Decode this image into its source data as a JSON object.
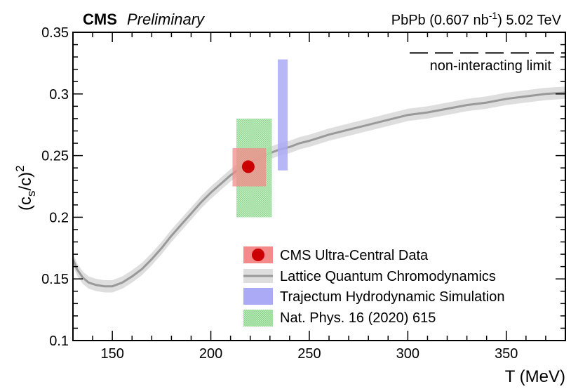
{
  "header": {
    "experiment": "CMS",
    "status": "Preliminary",
    "dataset_prefix": "PbPb (0.607 nb",
    "dataset_exp": "-1",
    "dataset_suffix": ") 5.02 TeV"
  },
  "chart_data": {
    "type": "line",
    "xlabel": "T (MeV)",
    "ylabel_base": "(c",
    "ylabel_sub": "s",
    "ylabel_mid": "/c)",
    "ylabel_sup": "2",
    "xlim": [
      130,
      380
    ],
    "ylim": [
      0.1,
      0.35
    ],
    "x_ticks": [
      150,
      200,
      250,
      300,
      350
    ],
    "x_tick_labels": [
      "150",
      "200",
      "250",
      "300",
      "350"
    ],
    "y_ticks": [
      0.1,
      0.15,
      0.2,
      0.25,
      0.3,
      0.35
    ],
    "y_tick_labels": [
      "0.1",
      "0.15",
      "0.2",
      "0.25",
      "0.3",
      "0.35"
    ],
    "reference_line": {
      "y": 0.3333,
      "label": "non-interacting limit"
    },
    "lattice_qcd": {
      "label": "Lattice Quantum Chromodynamics",
      "color": "#999999",
      "band_color": "#dedede",
      "x": [
        130,
        132,
        135,
        138,
        142,
        146,
        150,
        155,
        160,
        165,
        170,
        175,
        180,
        185,
        190,
        195,
        200,
        205,
        210,
        215,
        220,
        225,
        230,
        235,
        240,
        245,
        250,
        260,
        270,
        280,
        290,
        300,
        310,
        320,
        330,
        340,
        350,
        360,
        370,
        380
      ],
      "y": [
        0.166,
        0.158,
        0.151,
        0.147,
        0.145,
        0.144,
        0.144,
        0.147,
        0.152,
        0.158,
        0.166,
        0.175,
        0.185,
        0.194,
        0.203,
        0.212,
        0.22,
        0.227,
        0.234,
        0.24,
        0.244,
        0.248,
        0.252,
        0.255,
        0.257,
        0.26,
        0.262,
        0.267,
        0.271,
        0.275,
        0.279,
        0.283,
        0.285,
        0.288,
        0.291,
        0.293,
        0.296,
        0.298,
        0.3,
        0.301
      ],
      "band_halfwidth": [
        0.005,
        0.005,
        0.005,
        0.005,
        0.005,
        0.005,
        0.005,
        0.005,
        0.005,
        0.005,
        0.005,
        0.005,
        0.005,
        0.005,
        0.005,
        0.005,
        0.005,
        0.005,
        0.005,
        0.005,
        0.005,
        0.005,
        0.005,
        0.005,
        0.005,
        0.005,
        0.005,
        0.005,
        0.005,
        0.005,
        0.005,
        0.005,
        0.005,
        0.005,
        0.005,
        0.005,
        0.005,
        0.005,
        0.005,
        0.005
      ]
    },
    "cms_data": {
      "label": "CMS Ultra-Central Data",
      "x": 219,
      "y": 0.241,
      "sys_x": [
        211,
        228
      ],
      "sys_y": [
        0.225,
        0.256
      ],
      "marker_color": "#cc0000",
      "box_color": "#f48a8a"
    },
    "trajectum": {
      "label": "Trajectum Hydrodynamic Simulation",
      "x": [
        234,
        239
      ],
      "y": [
        0.238,
        0.328
      ],
      "color": "#aaaaf6"
    },
    "nat_phys": {
      "label": "Nat. Phys. 16 (2020) 615",
      "x": [
        213,
        231
      ],
      "y": [
        0.2,
        0.28
      ],
      "color": "#7fd37f"
    },
    "legend_position": "bottom-right"
  }
}
